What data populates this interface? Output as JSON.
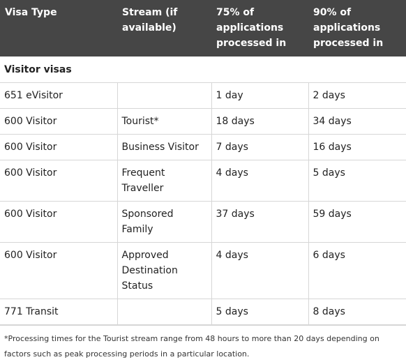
{
  "table": {
    "headers": [
      "Visa Type",
      "Stream (if available)",
      "75% of applications processed in",
      "90% of applications processed in"
    ],
    "section_label": "Visitor visas",
    "rows": [
      {
        "visa": "651 eVisitor",
        "stream": "",
        "p75": "1 day",
        "p90": "2 days"
      },
      {
        "visa": "600 Visitor",
        "stream": "Tourist*",
        "p75": "18 days",
        "p90": "34 days"
      },
      {
        "visa": "600 Visitor",
        "stream": "Business Visitor",
        "p75": "7 days",
        "p90": "16 days"
      },
      {
        "visa": "600 Visitor",
        "stream": "Frequent Traveller",
        "p75": "4 days",
        "p90": "5 days"
      },
      {
        "visa": "600 Visitor",
        "stream": "Sponsored Family",
        "p75": "37 days",
        "p90": "59 days"
      },
      {
        "visa": "600 Visitor",
        "stream": "Approved Destination Status",
        "p75": "4 days",
        "p90": "6 days"
      },
      {
        "visa": "771 Transit",
        "stream": "",
        "p75": "5 days",
        "p90": "8 days"
      }
    ]
  },
  "footnote": "*Processing times for the Tourist stream range from 48 hours to more than 20 days depending on factors such as peak processing periods in a particular location."
}
